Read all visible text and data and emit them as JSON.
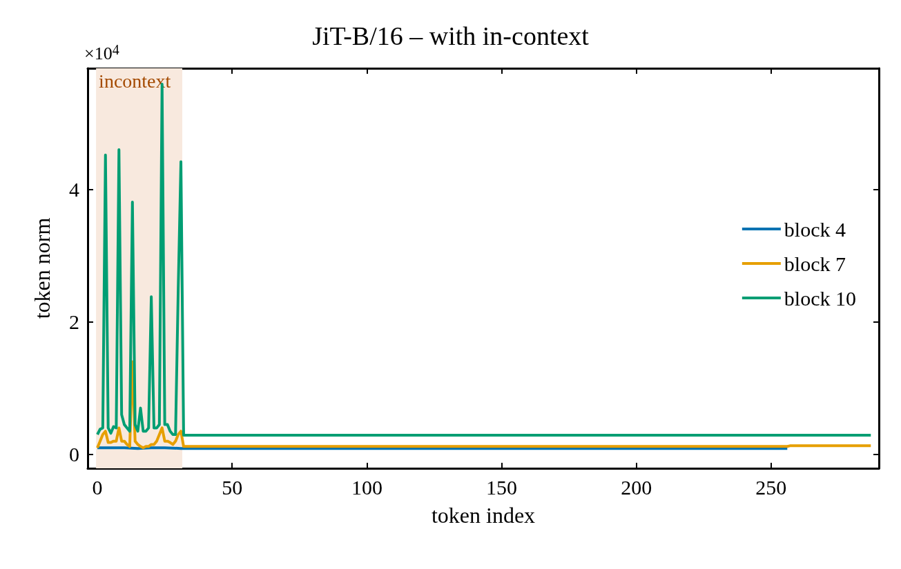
{
  "chart_data": {
    "type": "line",
    "title": "JiT-B/16 – with in-context",
    "xlabel": "token index",
    "ylabel": "token norm",
    "annotations": [
      "×10$^{4}$"
    ],
    "xlim": [
      -3.6,
      290
    ],
    "xticks": [
      0,
      50,
      100,
      150,
      200,
      250
    ],
    "ylim": [
      -0.21,
      5.83
    ],
    "yticks": [
      0,
      2,
      4
    ],
    "grid": false,
    "legend": "right",
    "marker": "none",
    "line_style": "solid",
    "bands": [
      {
        "axis": "x",
        "from": -0.5,
        "to": 31.5,
        "label": "incontext",
        "color": "#f8e9de"
      }
    ],
    "series": [
      {
        "name": "block 4",
        "color": "#0072b2",
        "x": [
          0,
          5,
          10,
          15,
          20,
          25,
          31,
          32,
          100,
          200,
          256
        ],
        "values": [
          0.1,
          0.1,
          0.1,
          0.09,
          0.1,
          0.1,
          0.09,
          0.09,
          0.09,
          0.09,
          0.09
        ]
      },
      {
        "name": "block 7",
        "color": "#e69f00",
        "x": [
          0,
          1,
          2,
          3,
          4,
          5,
          6,
          7,
          8,
          9,
          10,
          11,
          12,
          13,
          14,
          15,
          16,
          17,
          18,
          19,
          20,
          21,
          22,
          23,
          24,
          25,
          26,
          27,
          28,
          29,
          30,
          31,
          32,
          100,
          200,
          256,
          257,
          287
        ],
        "values": [
          0.1,
          0.2,
          0.3,
          0.35,
          0.18,
          0.18,
          0.2,
          0.2,
          0.4,
          0.2,
          0.2,
          0.15,
          0.12,
          1.4,
          0.2,
          0.15,
          0.12,
          0.1,
          0.12,
          0.12,
          0.15,
          0.15,
          0.2,
          0.3,
          0.4,
          0.2,
          0.2,
          0.18,
          0.15,
          0.2,
          0.3,
          0.35,
          0.12,
          0.12,
          0.12,
          0.12,
          0.13,
          0.13
        ]
      },
      {
        "name": "block 10",
        "color": "#009e73",
        "x": [
          0,
          1,
          2,
          3,
          4,
          5,
          6,
          7,
          8,
          9,
          10,
          11,
          12,
          13,
          14,
          15,
          16,
          17,
          18,
          19,
          20,
          21,
          22,
          23,
          24,
          25,
          26,
          27,
          28,
          29,
          30,
          31,
          32,
          100,
          200,
          287
        ],
        "values": [
          0.3,
          0.38,
          0.4,
          4.52,
          0.4,
          0.32,
          0.42,
          0.4,
          4.6,
          0.6,
          0.45,
          0.4,
          0.35,
          3.81,
          0.45,
          0.35,
          0.7,
          0.35,
          0.35,
          0.4,
          2.38,
          0.4,
          0.4,
          0.45,
          5.59,
          0.45,
          0.45,
          0.35,
          0.3,
          0.3,
          2.5,
          4.42,
          0.29,
          0.29,
          0.29,
          0.29
        ]
      }
    ]
  }
}
